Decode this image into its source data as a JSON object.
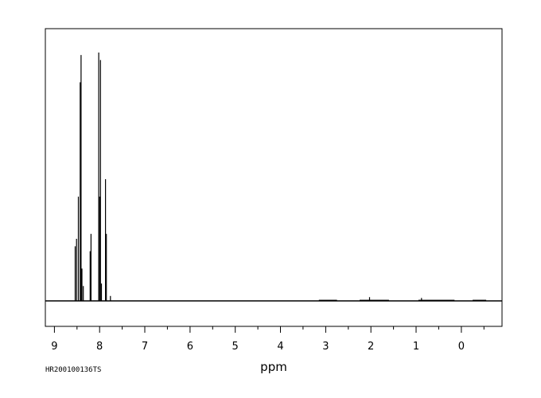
{
  "chart_data": {
    "type": "line",
    "xlabel": "ppm",
    "xlim": [
      9.2,
      -0.9
    ],
    "ylim": [
      -0.12,
      1.0
    ],
    "x_reversed": true,
    "major_ticks": [
      9,
      8,
      7,
      6,
      5,
      4,
      3,
      2,
      1,
      0
    ],
    "tick_labels": [
      "9",
      "8",
      "7",
      "6",
      "5",
      "4",
      "3",
      "2",
      "1",
      "0"
    ],
    "sample_code": "HR200100136TS",
    "line_color": "#000000",
    "peaks": [
      {
        "ppm": 8.54,
        "height": 0.22
      },
      {
        "ppm": 8.51,
        "height": 0.25
      },
      {
        "ppm": 8.47,
        "height": 0.42
      },
      {
        "ppm": 8.43,
        "height": 0.88
      },
      {
        "ppm": 8.41,
        "height": 0.99
      },
      {
        "ppm": 8.39,
        "height": 0.13
      },
      {
        "ppm": 8.36,
        "height": 0.06
      },
      {
        "ppm": 8.21,
        "height": 0.2
      },
      {
        "ppm": 8.19,
        "height": 0.27
      },
      {
        "ppm": 8.02,
        "height": 1.0
      },
      {
        "ppm": 8.0,
        "height": 0.42
      },
      {
        "ppm": 7.98,
        "height": 0.97
      },
      {
        "ppm": 7.96,
        "height": 0.07
      },
      {
        "ppm": 7.87,
        "height": 0.49
      },
      {
        "ppm": 7.85,
        "height": 0.27
      },
      {
        "ppm": 7.76,
        "height": 0.02
      },
      {
        "ppm": 2.03,
        "height": 0.015
      },
      {
        "ppm": 0.88,
        "height": 0.012
      }
    ]
  }
}
